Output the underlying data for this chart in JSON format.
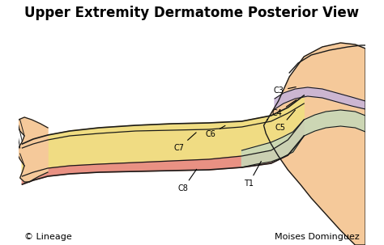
{
  "title": "Upper Extremity Dermatome Posterior View",
  "title_fontsize": 12,
  "background_color": "#ffffff",
  "skin_color": "#F5C99A",
  "outline_color": "#1a1a1a",
  "dermatome_colors": {
    "C4": "#C8B4D8",
    "C5": "#F0E080",
    "C6": "#F0E080",
    "C8": "#E88880",
    "T1": "#C8D8B8"
  },
  "footer_left": "© Lineage",
  "footer_right": "Moises Dominguez",
  "footer_fontsize": 8
}
